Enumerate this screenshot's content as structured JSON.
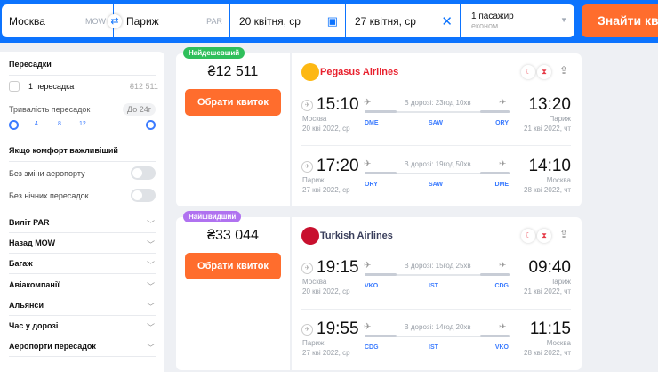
{
  "search": {
    "from": "Москва",
    "from_code": "MOW",
    "to": "Париж",
    "to_code": "PAR",
    "depart": "20 квітня, ср",
    "return": "27 квітня, ср",
    "passengers": "1 пасажир",
    "cabin": "економ",
    "button": "Знайти квитки"
  },
  "sidebar": {
    "stops_title": "Пересадки",
    "stop_option": "1 пересадка",
    "stop_price": "₴12 511",
    "layover_title": "Тривалість пересадок",
    "layover_value": "До 24г",
    "ticks": [
      "4",
      "8",
      "12"
    ],
    "comfort_title": "Якщо комфорт важливіший",
    "toggles": [
      "Без зміни аеропорту",
      "Без нічних пересадок"
    ],
    "sections": [
      "Виліт PAR",
      "Назад MOW",
      "Багаж",
      "Авіакомпанії",
      "Альянси",
      "Час у дорозі",
      "Аеропорти пересадок"
    ]
  },
  "offers": [
    {
      "badge": "Найдешевший",
      "badge_color": "#2fbf5b",
      "price": "₴12 511",
      "button": "Обрати квиток",
      "airline": "Pegasus Airlines",
      "airline_color": "#e8212e",
      "legs": [
        {
          "dep": "15:10",
          "arr": "13:20",
          "from": "Москва",
          "to": "Париж",
          "dep_date": "20 кві 2022, ср",
          "arr_date": "21 кві 2022, чт",
          "duration": "В дорозі: 23год 10хв",
          "codes": [
            "DME",
            "SAW",
            "ORY"
          ]
        },
        {
          "dep": "17:20",
          "arr": "14:10",
          "from": "Париж",
          "to": "Москва",
          "dep_date": "27 кві 2022, ср",
          "arr_date": "28 кві 2022, чт",
          "duration": "В дорозі: 19год 50хв",
          "codes": [
            "ORY",
            "SAW",
            "DME"
          ]
        }
      ]
    },
    {
      "badge": "Найшвидший",
      "badge_color": "#b072f0",
      "price": "₴33 044",
      "button": "Обрати квиток",
      "airline": "Turkish Airlines",
      "airline_color": "#3a3f5c",
      "legs": [
        {
          "dep": "19:15",
          "arr": "09:40",
          "from": "Москва",
          "to": "Париж",
          "dep_date": "20 кві 2022, ср",
          "arr_date": "21 кві 2022, чт",
          "duration": "В дорозі: 15год 25хв",
          "codes": [
            "VKO",
            "IST",
            "CDG"
          ]
        },
        {
          "dep": "19:55",
          "arr": "11:15",
          "from": "Париж",
          "to": "Москва",
          "dep_date": "27 кві 2022, ср",
          "arr_date": "28 кві 2022, чт",
          "duration": "В дорозі: 14год 20хв",
          "codes": [
            "CDG",
            "IST",
            "VKO"
          ]
        }
      ]
    }
  ]
}
